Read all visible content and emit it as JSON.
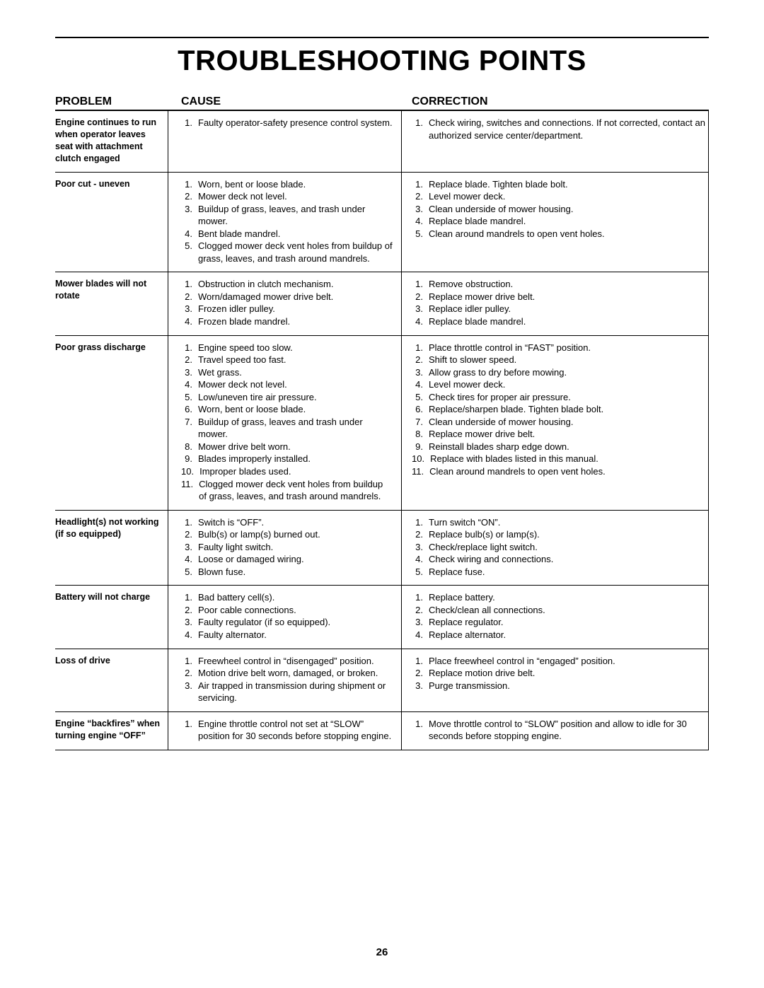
{
  "title": "TROUBLESHOOTING POINTS",
  "page_number": "26",
  "headers": {
    "problem": "PROBLEM",
    "cause": "CAUSE",
    "correction": "CORRECTION"
  },
  "rows": [
    {
      "problem": "Engine continues to run when operator leaves seat with attachment clutch engaged",
      "causes": [
        "Faulty operator-safety presence control system."
      ],
      "corrections": [
        "Check wiring, switches and connections. If not corrected, contact an authorized service center/department."
      ]
    },
    {
      "problem": "Poor cut - uneven",
      "causes": [
        "Worn, bent or loose blade.",
        "Mower deck not level.",
        "Buildup of grass, leaves, and trash under mower.",
        "Bent blade mandrel.",
        "Clogged mower deck vent holes from buildup of grass, leaves, and trash around mandrels."
      ],
      "corrections": [
        "Replace blade. Tighten blade bolt.",
        "Level mower deck.",
        "Clean underside of mower housing.",
        "Replace blade mandrel.",
        "Clean around mandrels to open vent holes."
      ]
    },
    {
      "problem": "Mower blades will not rotate",
      "causes": [
        "Obstruction in clutch mechanism.",
        "Worn/damaged mower drive belt.",
        "Frozen idler pulley.",
        "Frozen blade mandrel."
      ],
      "corrections": [
        "Remove obstruction.",
        "Replace mower drive belt.",
        "Replace idler pulley.",
        "Replace blade mandrel."
      ]
    },
    {
      "problem": "Poor grass discharge",
      "causes": [
        "Engine speed too slow.",
        "Travel speed too fast.",
        "Wet grass.",
        "Mower deck not level.",
        "Low/uneven tire air pressure.",
        "Worn, bent or loose blade.",
        "Buildup of grass, leaves and trash under mower.",
        "Mower drive belt worn.",
        "Blades improperly installed.",
        "Improper blades used.",
        "Clogged mower deck vent holes from buildup of grass, leaves, and trash around mandrels."
      ],
      "corrections": [
        "Place throttle control in “FAST” position.",
        "Shift to slower speed.",
        "Allow grass to dry before mowing.",
        "Level mower deck.",
        "Check tires for proper air pressure.",
        "Replace/sharpen blade. Tighten blade bolt.",
        "Clean underside of mower housing.",
        "Replace mower drive belt.",
        "Reinstall blades sharp edge down.",
        "Replace with blades listed in this manual.",
        "Clean around mandrels to open vent holes."
      ]
    },
    {
      "problem": "Headlight(s) not working (if so equipped)",
      "causes": [
        "Switch is “OFF”.",
        "Bulb(s) or lamp(s) burned out.",
        "Faulty light switch.",
        "Loose or damaged wiring.",
        "Blown fuse."
      ],
      "corrections": [
        "Turn switch “ON”.",
        "Replace bulb(s) or lamp(s).",
        "Check/replace light switch.",
        "Check wiring and connections.",
        "Replace fuse."
      ]
    },
    {
      "problem": "Battery will not charge",
      "causes": [
        "Bad battery cell(s).",
        "Poor cable connections.",
        "Faulty regulator (if so equipped).",
        "Faulty alternator."
      ],
      "corrections": [
        "Replace battery.",
        "Check/clean all connections.",
        "Replace regulator.",
        "Replace alternator."
      ]
    },
    {
      "problem": "Loss of drive",
      "causes": [
        "Freewheel control in “disengaged” position.",
        "Motion drive belt worn, damaged, or broken.",
        "Air trapped in transmission during shipment or servicing."
      ],
      "corrections": [
        "Place freewheel control in “engaged” position.",
        "Replace motion drive belt.",
        "Purge transmission."
      ]
    },
    {
      "problem": "Engine “backfires” when turning engine “OFF”",
      "causes": [
        "Engine throttle control not set at “SLOW” position for 30 seconds before stopping engine."
      ],
      "corrections": [
        "Move throttle control to “SLOW” position and allow to idle for 30 seconds before stopping engine."
      ]
    }
  ]
}
